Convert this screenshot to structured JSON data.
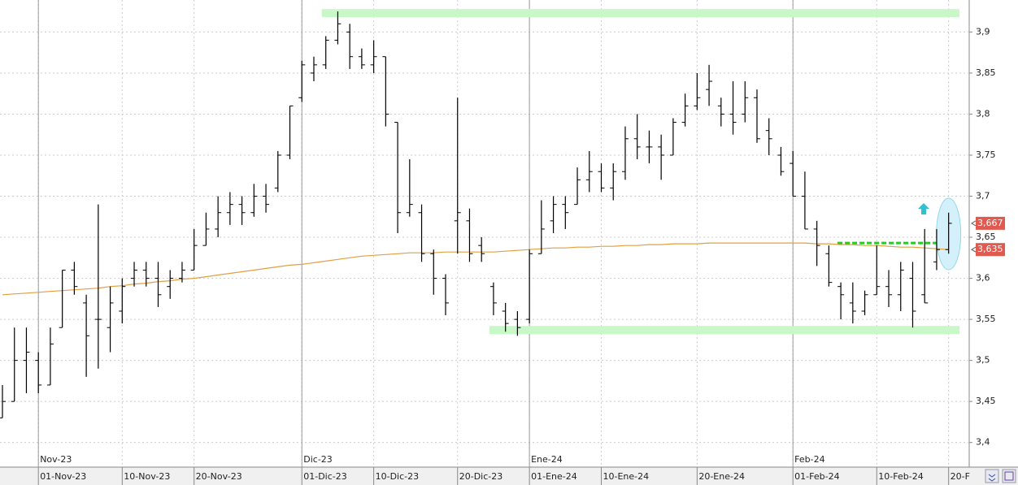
{
  "chart_data": {
    "type": "ohlc",
    "categories": [
      null,
      null,
      null,
      "01-Nov-23",
      null,
      null,
      null,
      null,
      null,
      null,
      "10-Nov-23",
      null,
      null,
      null,
      null,
      null,
      "20-Nov-23",
      null,
      null,
      null,
      null,
      null,
      null,
      null,
      null,
      "01-Dic-23",
      null,
      null,
      null,
      null,
      null,
      "10-Dic-23",
      null,
      null,
      null,
      null,
      null,
      null,
      "20-Dic-23",
      null,
      null,
      null,
      null,
      null,
      "01-Ene-24",
      null,
      null,
      null,
      null,
      null,
      "10-Ene-24",
      null,
      null,
      null,
      null,
      null,
      null,
      null,
      "20-Ene-24",
      null,
      null,
      null,
      null,
      null,
      null,
      null,
      "01-Feb-24",
      null,
      null,
      null,
      null,
      null,
      null,
      "10-Feb-24",
      null,
      null,
      null,
      null,
      null,
      "20-F"
    ],
    "months": [
      "Nov-23",
      "Dic-23",
      "Ene-24",
      "Feb-24"
    ],
    "open": [
      3.43,
      3.45,
      3.5,
      3.5,
      3.47,
      3.54,
      3.61,
      3.57,
      3.55,
      3.54,
      3.56,
      3.6,
      3.61,
      3.6,
      3.59,
      3.6,
      3.61,
      3.64,
      3.66,
      3.68,
      3.69,
      3.68,
      3.7,
      3.71,
      3.75,
      3.82,
      3.85,
      3.86,
      3.89,
      3.9,
      3.87,
      3.86,
      3.87,
      3.79,
      3.68,
      3.68,
      3.63,
      3.6,
      3.67,
      3.67,
      3.64,
      3.59,
      3.56,
      3.55,
      3.55,
      3.63,
      3.67,
      3.69,
      3.69,
      3.72,
      3.73,
      3.71,
      3.73,
      3.77,
      3.76,
      3.76,
      3.75,
      3.79,
      3.81,
      3.83,
      3.81,
      3.8,
      3.8,
      3.82,
      3.78,
      3.75,
      3.74,
      3.7,
      3.66,
      3.63,
      3.59,
      3.57,
      3.56,
      3.58,
      3.59,
      3.58,
      3.6,
      3.58,
      3.62,
      3.635
    ],
    "high": [
      3.47,
      3.54,
      3.54,
      3.51,
      3.54,
      3.61,
      3.62,
      3.58,
      3.69,
      3.59,
      3.6,
      3.62,
      3.62,
      3.62,
      3.61,
      3.62,
      3.66,
      3.68,
      3.7,
      3.705,
      3.7,
      3.715,
      3.715,
      3.755,
      3.81,
      3.865,
      3.87,
      3.895,
      3.925,
      3.91,
      3.88,
      3.89,
      3.87,
      3.79,
      3.745,
      3.69,
      3.635,
      3.605,
      3.82,
      3.685,
      3.65,
      3.595,
      3.57,
      3.56,
      3.635,
      3.695,
      3.7,
      3.7,
      3.735,
      3.755,
      3.74,
      3.74,
      3.785,
      3.8,
      3.78,
      3.775,
      3.795,
      3.825,
      3.85,
      3.86,
      3.82,
      3.84,
      3.84,
      3.83,
      3.795,
      3.76,
      3.755,
      3.73,
      3.67,
      3.64,
      3.595,
      3.595,
      3.585,
      3.64,
      3.61,
      3.62,
      3.62,
      3.66,
      3.66,
      3.68
    ],
    "low": [
      3.43,
      3.45,
      3.46,
      3.46,
      3.47,
      3.54,
      3.58,
      3.48,
      3.49,
      3.51,
      3.545,
      3.59,
      3.59,
      3.565,
      3.575,
      3.595,
      3.61,
      3.64,
      3.65,
      3.665,
      3.665,
      3.675,
      3.68,
      3.705,
      3.745,
      3.815,
      3.84,
      3.855,
      3.885,
      3.855,
      3.855,
      3.85,
      3.785,
      3.655,
      3.675,
      3.62,
      3.58,
      3.555,
      3.63,
      3.62,
      3.62,
      3.555,
      3.535,
      3.53,
      3.545,
      3.63,
      3.655,
      3.66,
      3.69,
      3.705,
      3.705,
      3.695,
      3.72,
      3.745,
      3.74,
      3.72,
      3.75,
      3.785,
      3.805,
      3.81,
      3.785,
      3.775,
      3.79,
      3.765,
      3.75,
      3.725,
      3.7,
      3.66,
      3.615,
      3.59,
      3.55,
      3.545,
      3.555,
      3.58,
      3.565,
      3.56,
      3.54,
      3.57,
      3.61,
      3.63
    ],
    "close": [
      3.45,
      3.5,
      3.51,
      3.47,
      3.52,
      3.61,
      3.59,
      3.53,
      3.55,
      3.57,
      3.59,
      3.61,
      3.6,
      3.58,
      3.6,
      3.61,
      3.64,
      3.66,
      3.68,
      3.69,
      3.68,
      3.7,
      3.69,
      3.75,
      3.81,
      3.86,
      3.86,
      3.89,
      3.91,
      3.87,
      3.86,
      3.87,
      3.8,
      3.68,
      3.69,
      3.63,
      3.6,
      3.57,
      3.68,
      3.63,
      3.63,
      3.57,
      3.545,
      3.54,
      3.63,
      3.66,
      3.69,
      3.68,
      3.72,
      3.73,
      3.71,
      3.73,
      3.77,
      3.76,
      3.76,
      3.75,
      3.79,
      3.81,
      3.82,
      3.84,
      3.8,
      3.79,
      3.82,
      3.77,
      3.77,
      3.73,
      3.7,
      3.66,
      3.64,
      3.595,
      3.58,
      3.56,
      3.58,
      3.59,
      3.58,
      3.61,
      3.56,
      3.57,
      3.635,
      3.667
    ],
    "bar_color": "#000000",
    "moving_average": {
      "color": "#e0a040",
      "values": [
        3.58,
        3.581,
        3.582,
        3.583,
        3.584,
        3.585,
        3.586,
        3.587,
        3.588,
        3.59,
        3.591,
        3.593,
        3.594,
        3.596,
        3.597,
        3.599,
        3.6,
        3.602,
        3.604,
        3.606,
        3.608,
        3.61,
        3.612,
        3.614,
        3.616,
        3.617,
        3.619,
        3.621,
        3.623,
        3.625,
        3.627,
        3.628,
        3.629,
        3.63,
        3.631,
        3.631,
        3.631,
        3.632,
        3.632,
        3.632,
        3.632,
        3.632,
        3.633,
        3.634,
        3.635,
        3.636,
        3.637,
        3.637,
        3.638,
        3.638,
        3.639,
        3.639,
        3.64,
        3.64,
        3.641,
        3.641,
        3.642,
        3.642,
        3.642,
        3.643,
        3.643,
        3.643,
        3.643,
        3.643,
        3.643,
        3.643,
        3.643,
        3.643,
        3.642,
        3.642,
        3.641,
        3.641,
        3.64,
        3.64,
        3.639,
        3.638,
        3.638,
        3.637,
        3.636,
        3.635
      ]
    },
    "levels": [
      {
        "value": 3.923,
        "color": "#c8f7c8"
      },
      {
        "value": 3.537,
        "color": "#c8f7c8"
      },
      {
        "value": 3.643,
        "color": "#22cc22",
        "dashed": true
      }
    ],
    "price_tags": [
      {
        "value": 3.667,
        "label": "3,667"
      },
      {
        "value": 3.635,
        "label": "3,635"
      }
    ],
    "tag_color": "#e05a50",
    "ylim": [
      3.37,
      3.939
    ],
    "yticks": [
      {
        "value": 3.4,
        "label": "3,4"
      },
      {
        "value": 3.45,
        "label": "3,45"
      },
      {
        "value": 3.5,
        "label": "3,5"
      },
      {
        "value": 3.55,
        "label": "3,55"
      },
      {
        "value": 3.6,
        "label": "3,6"
      },
      {
        "value": 3.65,
        "label": "3,65"
      },
      {
        "value": 3.7,
        "label": "3,7"
      },
      {
        "value": 3.75,
        "label": "3,75"
      },
      {
        "value": 3.8,
        "label": "3,8"
      },
      {
        "value": 3.85,
        "label": "3,85"
      },
      {
        "value": 3.9,
        "label": "3,9"
      }
    ],
    "grid": true
  }
}
